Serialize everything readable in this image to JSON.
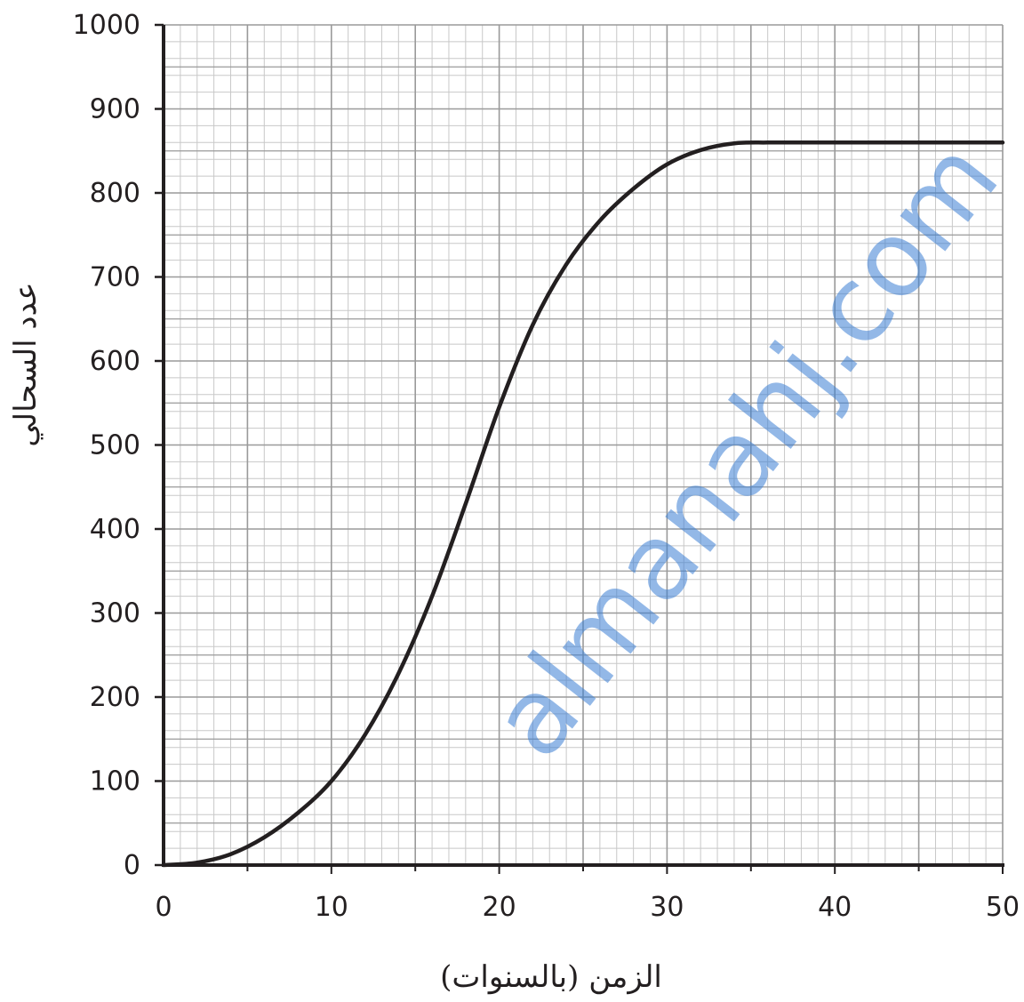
{
  "chart_data": {
    "type": "line",
    "title": "",
    "xlabel": "الزمن (بالسنوات)",
    "ylabel": "عدد السحالي",
    "xlim": [
      0,
      50
    ],
    "ylim": [
      0,
      1000
    ],
    "x_ticks": [
      "0",
      "10",
      "20",
      "30",
      "40",
      "50"
    ],
    "y_ticks": [
      "0",
      "100",
      "200",
      "300",
      "400",
      "500",
      "600",
      "700",
      "800",
      "900",
      "1000"
    ],
    "grid": {
      "major": 5,
      "minor": 1,
      "minor_y": 20
    },
    "legend": "none",
    "series": [
      {
        "x": [
          0,
          2,
          4,
          6,
          8,
          10,
          12,
          14,
          16,
          18,
          20,
          22,
          24,
          26,
          28,
          30,
          32,
          34,
          36,
          38,
          40,
          45,
          50
        ],
        "values": [
          0,
          3,
          13,
          33,
          62,
          100,
          155,
          228,
          320,
          430,
          545,
          643,
          715,
          767,
          805,
          834,
          851,
          859,
          860,
          860,
          860,
          860,
          860
        ]
      }
    ],
    "watermark": "almanahj.com",
    "colors": {
      "line": "#231f20",
      "axis": "#231f20",
      "major_grid": "#9a9a9a",
      "minor_grid": "#c8c8c8",
      "watermark": "#3b7fd4"
    }
  }
}
